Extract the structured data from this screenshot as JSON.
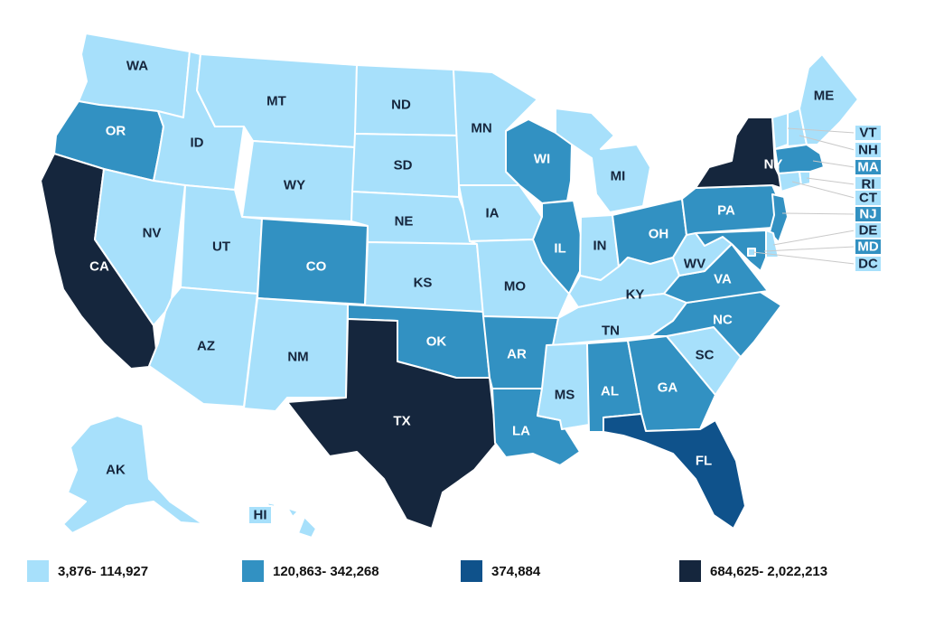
{
  "colors": {
    "c1": "#a7e0fb",
    "c2": "#3291c2",
    "c3": "#0f528b",
    "c4": "#15263d",
    "border": "#ffffff"
  },
  "legend": [
    {
      "label": "3,876- 114,927",
      "class": "c1"
    },
    {
      "label": "120,863- 342,268",
      "class": "c2"
    },
    {
      "label": "374,884",
      "class": "c3"
    },
    {
      "label": "684,625- 2,022,213",
      "class": "c4"
    }
  ],
  "states": {
    "WA": {
      "label": "WA",
      "class": "c1"
    },
    "OR": {
      "label": "OR",
      "class": "c2"
    },
    "CA": {
      "label": "CA",
      "class": "c4"
    },
    "ID": {
      "label": "ID",
      "class": "c1"
    },
    "NV": {
      "label": "NV",
      "class": "c1"
    },
    "MT": {
      "label": "MT",
      "class": "c1"
    },
    "WY": {
      "label": "WY",
      "class": "c1"
    },
    "UT": {
      "label": "UT",
      "class": "c1"
    },
    "AZ": {
      "label": "AZ",
      "class": "c1"
    },
    "CO": {
      "label": "CO",
      "class": "c2"
    },
    "NM": {
      "label": "NM",
      "class": "c1"
    },
    "ND": {
      "label": "ND",
      "class": "c1"
    },
    "SD": {
      "label": "SD",
      "class": "c1"
    },
    "NE": {
      "label": "NE",
      "class": "c1"
    },
    "KS": {
      "label": "KS",
      "class": "c1"
    },
    "OK": {
      "label": "OK",
      "class": "c2"
    },
    "TX": {
      "label": "TX",
      "class": "c4"
    },
    "MN": {
      "label": "MN",
      "class": "c1"
    },
    "IA": {
      "label": "IA",
      "class": "c1"
    },
    "MO": {
      "label": "MO",
      "class": "c1"
    },
    "AR": {
      "label": "AR",
      "class": "c2"
    },
    "LA": {
      "label": "LA",
      "class": "c2"
    },
    "WI": {
      "label": "WI",
      "class": "c2"
    },
    "IL": {
      "label": "IL",
      "class": "c2"
    },
    "MI": {
      "label": "MI",
      "class": "c1"
    },
    "IN": {
      "label": "IN",
      "class": "c1"
    },
    "OH": {
      "label": "OH",
      "class": "c2"
    },
    "KY": {
      "label": "KY",
      "class": "c1"
    },
    "TN": {
      "label": "TN",
      "class": "c1"
    },
    "MS": {
      "label": "MS",
      "class": "c1"
    },
    "AL": {
      "label": "AL",
      "class": "c2"
    },
    "GA": {
      "label": "GA",
      "class": "c2"
    },
    "FL": {
      "label": "FL",
      "class": "c3"
    },
    "SC": {
      "label": "SC",
      "class": "c1"
    },
    "NC": {
      "label": "NC",
      "class": "c2"
    },
    "VA": {
      "label": "VA",
      "class": "c2"
    },
    "WV": {
      "label": "WV",
      "class": "c1"
    },
    "PA": {
      "label": "PA",
      "class": "c2"
    },
    "NY": {
      "label": "NY",
      "class": "c4"
    },
    "ME": {
      "label": "ME",
      "class": "c1"
    },
    "AK": {
      "label": "AK",
      "class": "c1"
    },
    "HI": {
      "label": "HI",
      "class": "c1"
    },
    "VT": {
      "label": "VT",
      "class": "c1"
    },
    "NH": {
      "label": "NH",
      "class": "c1"
    },
    "MA": {
      "label": "MA",
      "class": "c2"
    },
    "RI": {
      "label": "RI",
      "class": "c1"
    },
    "CT": {
      "label": "CT",
      "class": "c1"
    },
    "NJ": {
      "label": "NJ",
      "class": "c2"
    },
    "DE": {
      "label": "DE",
      "class": "c1"
    },
    "MD": {
      "label": "MD",
      "class": "c2"
    },
    "DC": {
      "label": "DC",
      "class": "c1"
    }
  }
}
